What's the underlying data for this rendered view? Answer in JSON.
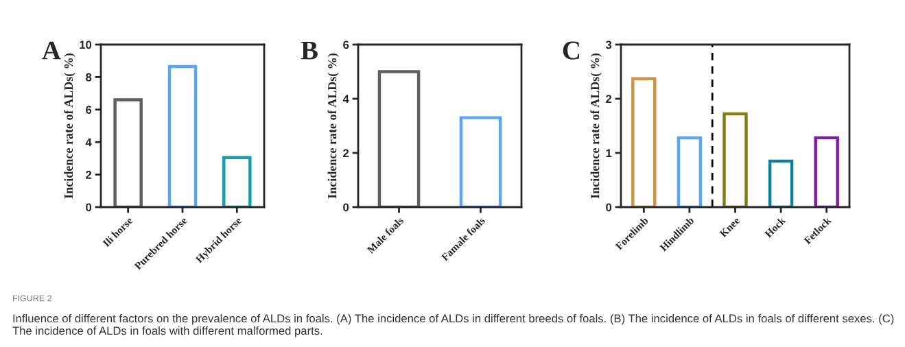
{
  "chart_data": [
    {
      "type": "bar",
      "title": "A",
      "ylabel": "Incidence rate of ALDs( %)",
      "categories": [
        "Ili horse",
        "Purebred horse",
        "Hybrid horse"
      ],
      "values": [
        6.6,
        8.65,
        3.05
      ],
      "colors": [
        "#606060",
        "#5aa5f5",
        "#1a9bb0"
      ],
      "ylim": [
        0,
        10
      ],
      "yticks": [
        0,
        2,
        4,
        6,
        8,
        10
      ],
      "grid": false,
      "annotations": [
        "FIGURE 2",
        "Influence of different factors on the prevalence of ALDs in foals. (A) The incidence of ALDs in different breeds of foals. (B) The incidence of ALDs in foals of different sexes. (C) The incidence of ALDs in foals with different malformed parts."
      ]
    },
    {
      "type": "bar",
      "title": "B",
      "ylabel": "Incidence rate of ALDs( %)",
      "categories": [
        "Male foals",
        "Famale foals"
      ],
      "values": [
        5.0,
        3.3
      ],
      "colors": [
        "#606060",
        "#5aa5f5"
      ],
      "ylim": [
        0,
        6
      ],
      "yticks": [
        0,
        2,
        4,
        6
      ],
      "grid": false
    },
    {
      "type": "bar",
      "title": "C",
      "ylabel": "Incidence rate of ALDs( %)",
      "categories": [
        "Forelimb",
        "Hindlimb",
        "Knee",
        "Hock",
        "Fetlock"
      ],
      "values": [
        2.37,
        1.28,
        1.72,
        0.85,
        1.28
      ],
      "colors": [
        "#c8964a",
        "#5aa5f5",
        "#7f7f10",
        "#127f9a",
        "#7b1fa0"
      ],
      "ylim": [
        0,
        3
      ],
      "yticks": [
        0,
        1,
        2,
        3
      ],
      "grid": false
    }
  ]
}
